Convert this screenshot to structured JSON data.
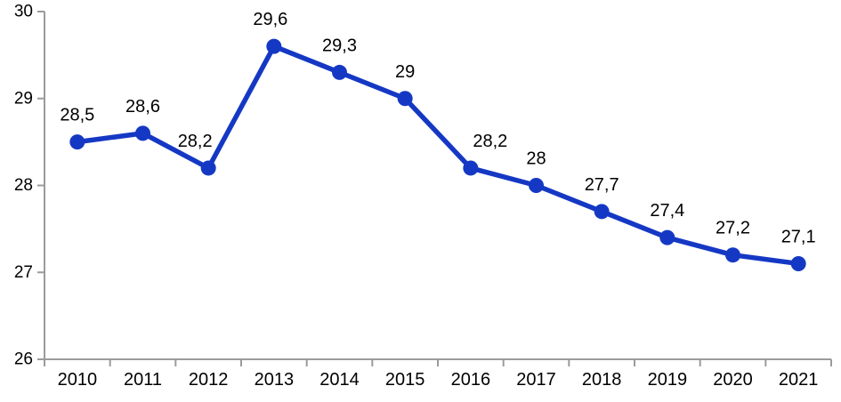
{
  "chart_data": {
    "type": "line",
    "categories": [
      "2010",
      "2011",
      "2012",
      "2013",
      "2014",
      "2015",
      "2016",
      "2017",
      "2018",
      "2019",
      "2020",
      "2021"
    ],
    "values": [
      28.5,
      28.6,
      28.2,
      29.6,
      29.3,
      29.0,
      28.2,
      28.0,
      27.7,
      27.4,
      27.2,
      27.1
    ],
    "point_labels": [
      "28,5",
      "28,6",
      "28,2",
      "29,6",
      "29,3",
      "29",
      "28,2",
      "28",
      "27,7",
      "27,4",
      "27,2",
      "27,1"
    ],
    "title": "",
    "xlabel": "",
    "ylabel": "",
    "ylim": [
      26,
      30
    ],
    "yticks": [
      26,
      27,
      28,
      29,
      30
    ],
    "ytick_labels": [
      "26",
      "27",
      "28",
      "29",
      "30"
    ],
    "grid": false,
    "legend": "none",
    "line_color": "#1538C4",
    "marker_color": "#1538C4",
    "axis_color": "#9B9B9B",
    "text_color": "#000000",
    "label_dx": [
      0,
      0,
      -15,
      -4,
      0,
      0,
      22,
      0,
      0,
      0,
      0,
      0
    ]
  }
}
